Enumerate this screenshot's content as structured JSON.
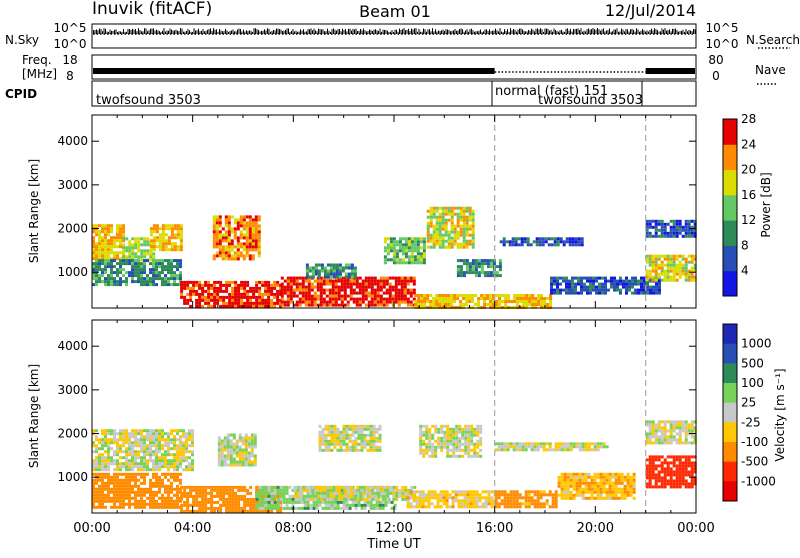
{
  "header": {
    "station": "Inuvik (fitACF)",
    "beam": "Beam 01",
    "date": "12/Jul/2014"
  },
  "status_panels": {
    "nsky_label": "N.Sky",
    "nsearch_label": "N.Search",
    "nsky_left_ticks": [
      "10^5",
      "10^0"
    ],
    "nsky_right_ticks": [
      "10^5",
      "10^0"
    ],
    "freq_label_line1": "Freq.",
    "freq_label_line2": "[MHz]",
    "freq_ticks": [
      "18",
      "8"
    ],
    "nave_label": "Nave",
    "nave_ticks": [
      "80",
      "0"
    ],
    "cpid_label": "CPID",
    "cpid_segments": [
      {
        "name": "twofsound 3503",
        "start_hour": 0,
        "end_hour": 16
      },
      {
        "name": "normal (fast) 151",
        "start_hour": 16,
        "end_hour": 22
      },
      {
        "name": "twofsound 3503",
        "start_hour": 16,
        "end_hour": 22
      }
    ]
  },
  "chart_data": [
    {
      "type": "heatmap",
      "title": "",
      "xlabel": "Time UT",
      "ylabel": "Slant Range [km]",
      "xlim_hours": [
        0,
        24
      ],
      "ylim_km": [
        180,
        4600
      ],
      "x_ticks": [
        "00:00",
        "04:00",
        "08:00",
        "12:00",
        "16:00",
        "20:00",
        "00:00"
      ],
      "y_ticks": [
        1000,
        2000,
        3000,
        4000
      ],
      "colorbar": {
        "label": "Power [dB]",
        "levels": [
          4,
          8,
          12,
          16,
          20,
          24,
          28
        ],
        "colors": [
          "#1414e6",
          "#284fb4",
          "#2e8b57",
          "#64c864",
          "#dcdc00",
          "#ff8c00",
          "#e60000"
        ]
      },
      "events": [
        {
          "time": "16:00",
          "marker": "dashed-line"
        },
        {
          "time": "22:00",
          "marker": "dashed-line"
        }
      ],
      "regions": [
        {
          "t0": 0.0,
          "t1": 1.2,
          "r0": 1300,
          "r1": 2100,
          "value": 22
        },
        {
          "t0": 1.2,
          "t1": 2.5,
          "r0": 1300,
          "r1": 1800,
          "value": 18
        },
        {
          "t0": 2.3,
          "t1": 3.5,
          "r0": 1500,
          "r1": 2100,
          "value": 22
        },
        {
          "t0": 0.0,
          "t1": 3.5,
          "r0": 700,
          "r1": 1300,
          "value": 12
        },
        {
          "t0": 4.8,
          "t1": 6.6,
          "r0": 1300,
          "r1": 2300,
          "value": 24
        },
        {
          "t0": 3.5,
          "t1": 7.5,
          "r0": 200,
          "r1": 800,
          "value": 28
        },
        {
          "t0": 7.5,
          "t1": 12.8,
          "r0": 250,
          "r1": 900,
          "value": 28
        },
        {
          "t0": 12.8,
          "t1": 18.2,
          "r0": 200,
          "r1": 500,
          "value": 22
        },
        {
          "t0": 8.5,
          "t1": 10.5,
          "r0": 900,
          "r1": 1200,
          "value": 12
        },
        {
          "t0": 11.6,
          "t1": 13.2,
          "r0": 1200,
          "r1": 1800,
          "value": 16
        },
        {
          "t0": 13.3,
          "t1": 15.2,
          "r0": 1600,
          "r1": 2500,
          "value": 20
        },
        {
          "t0": 14.5,
          "t1": 16.2,
          "r0": 900,
          "r1": 1300,
          "value": 12
        },
        {
          "t0": 16.2,
          "t1": 19.5,
          "r0": 1600,
          "r1": 1800,
          "value": 8
        },
        {
          "t0": 18.2,
          "t1": 22.5,
          "r0": 500,
          "r1": 900,
          "value": 8
        },
        {
          "t0": 22.0,
          "t1": 24.0,
          "r0": 800,
          "r1": 1400,
          "value": 20
        },
        {
          "t0": 22.0,
          "t1": 24.0,
          "r0": 1800,
          "r1": 2200,
          "value": 8
        }
      ]
    },
    {
      "type": "heatmap",
      "title": "",
      "xlabel": "Time UT",
      "ylabel": "Slant Range [km]",
      "xlim_hours": [
        0,
        24
      ],
      "ylim_km": [
        180,
        4600
      ],
      "x_ticks": [
        "00:00",
        "04:00",
        "08:00",
        "12:00",
        "16:00",
        "20:00",
        "00:00"
      ],
      "y_ticks": [
        1000,
        2000,
        3000,
        4000
      ],
      "colorbar": {
        "label": "Velocity [m s⁻¹]",
        "levels": [
          1000,
          500,
          100,
          25,
          -25,
          -100,
          -500,
          -1000
        ],
        "colors": [
          "#1e28b4",
          "#2850b4",
          "#2e8b57",
          "#78d25a",
          "#c8c8c8",
          "#ffc800",
          "#ff8c00",
          "#ff2800",
          "#e60000"
        ]
      },
      "events": [
        {
          "time": "16:00",
          "marker": "dashed-line"
        },
        {
          "time": "22:00",
          "marker": "dashed-line"
        }
      ],
      "regions": [
        {
          "t0": 0.0,
          "t1": 4.0,
          "r0": 1200,
          "r1": 2100,
          "value": 0
        },
        {
          "t0": 0.0,
          "t1": 3.5,
          "r0": 300,
          "r1": 1100,
          "value": -300
        },
        {
          "t0": 3.5,
          "t1": 7.5,
          "r0": 200,
          "r1": 800,
          "value": -200
        },
        {
          "t0": 5.0,
          "t1": 6.5,
          "r0": 1300,
          "r1": 2000,
          "value": 0
        },
        {
          "t0": 6.5,
          "t1": 12.0,
          "r0": 300,
          "r1": 800,
          "value": 50
        },
        {
          "t0": 8.0,
          "t1": 12.8,
          "r0": 500,
          "r1": 800,
          "value": 0
        },
        {
          "t0": 9.0,
          "t1": 11.5,
          "r0": 1600,
          "r1": 2200,
          "value": 0
        },
        {
          "t0": 13.0,
          "t1": 15.5,
          "r0": 1500,
          "r1": 2200,
          "value": 0
        },
        {
          "t0": 12.5,
          "t1": 16.0,
          "r0": 300,
          "r1": 700,
          "value": -50
        },
        {
          "t0": 16.0,
          "t1": 20.5,
          "r0": 1600,
          "r1": 1800,
          "value": 0
        },
        {
          "t0": 16.0,
          "t1": 18.5,
          "r0": 300,
          "r1": 700,
          "value": -150
        },
        {
          "t0": 18.5,
          "t1": 21.5,
          "r0": 500,
          "r1": 1100,
          "value": -80
        },
        {
          "t0": 22.0,
          "t1": 24.0,
          "r0": 800,
          "r1": 1500,
          "value": -600
        },
        {
          "t0": 22.0,
          "t1": 24.0,
          "r0": 1800,
          "r1": 2300,
          "value": 0
        }
      ]
    }
  ]
}
